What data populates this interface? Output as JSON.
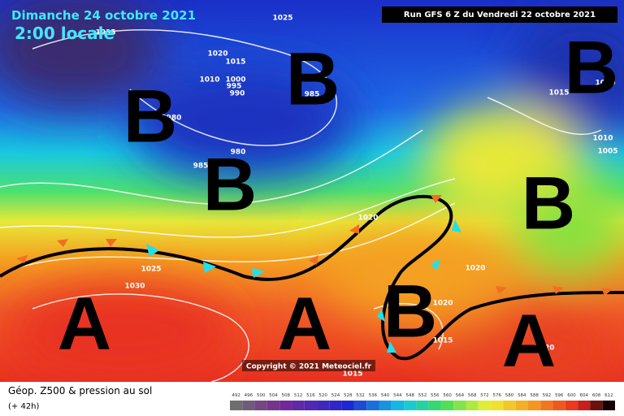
{
  "header": {
    "date": "Dimanche 24 octobre 2021",
    "time": "2:00 locale",
    "run": "Run GFS 6 Z du Vendredi 22 octobre 2021"
  },
  "pressure_labels": [
    1035,
    1025,
    1020,
    1015,
    1010,
    1000,
    995,
    990,
    985,
    980,
    980,
    985,
    1015,
    1010,
    1010,
    1005,
    1020,
    1025,
    1030,
    1020,
    1020,
    1015,
    1015,
    1020
  ],
  "systems": [
    "B",
    "B",
    "B",
    "B",
    "B",
    "B",
    "A",
    "A",
    "A"
  ],
  "copyright": "Copyright © 2021 Meteociel.fr",
  "legend": {
    "title": "Géop. Z500 & pression au sol",
    "lead": "(+ 42h)",
    "scale": [
      492,
      496,
      500,
      504,
      508,
      512,
      516,
      520,
      524,
      528,
      532,
      536,
      540,
      544,
      548,
      552,
      556,
      560,
      564,
      568,
      572,
      576,
      580,
      584,
      588,
      592,
      596,
      600,
      604,
      608,
      612
    ]
  }
}
